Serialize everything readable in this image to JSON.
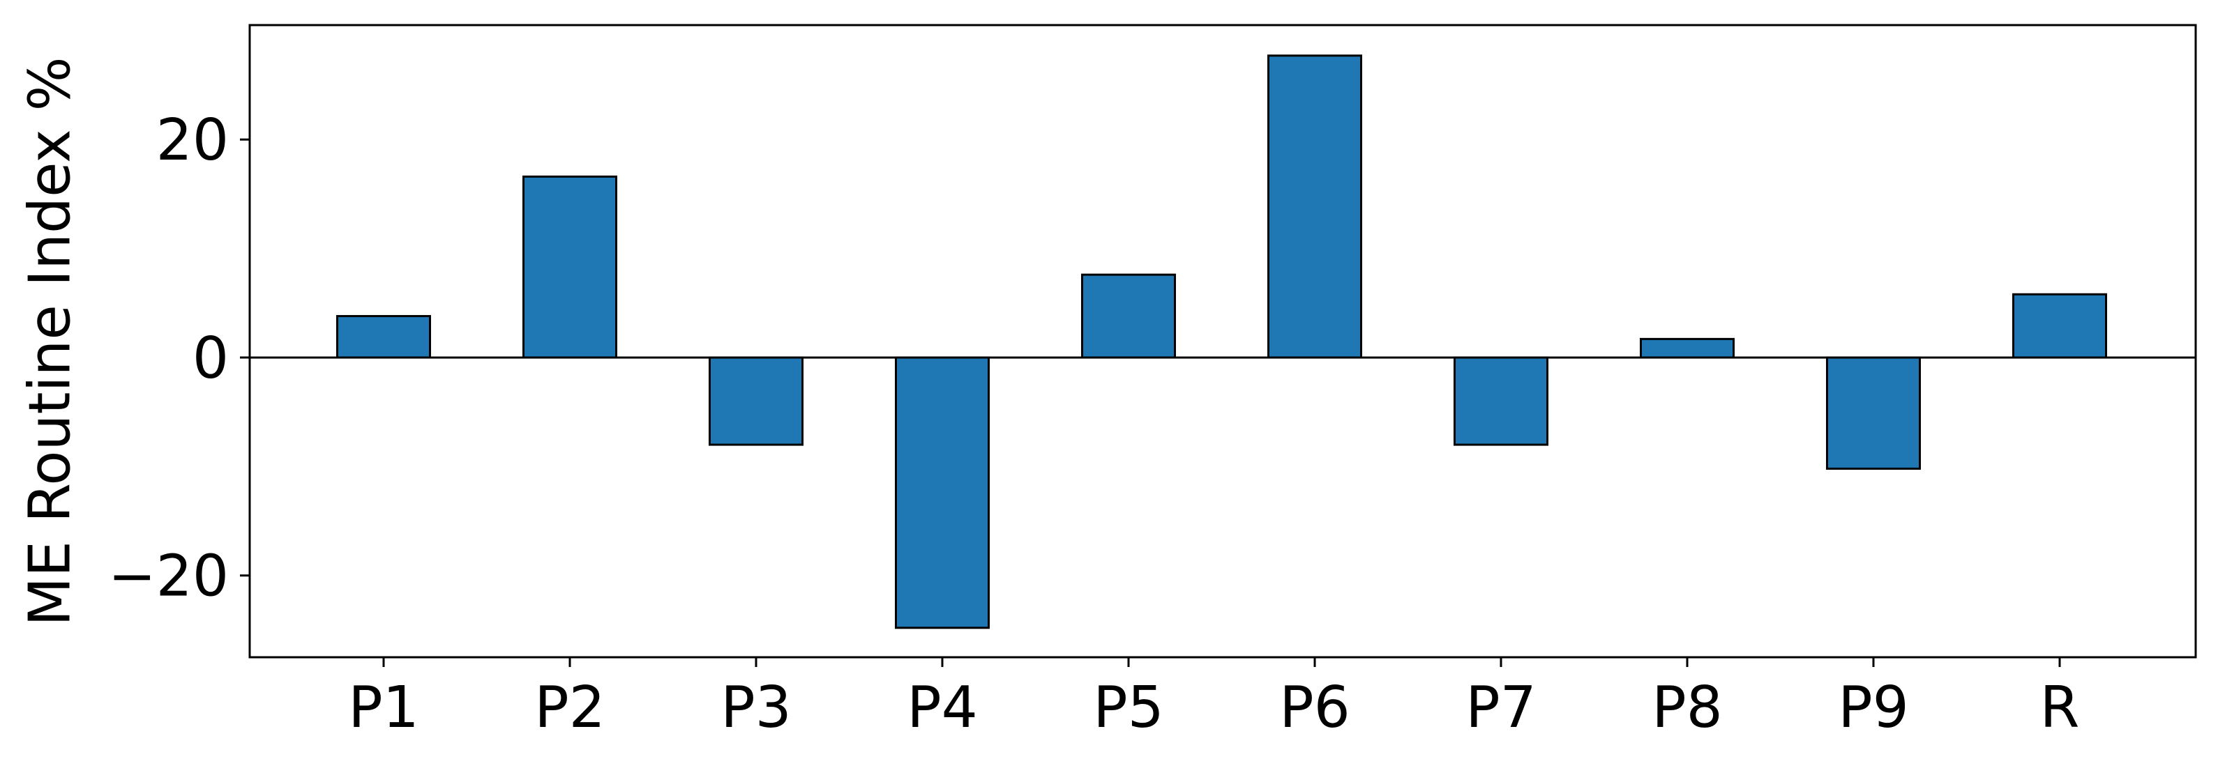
{
  "chart_data": {
    "type": "bar",
    "title": "",
    "xlabel": "",
    "ylabel": "ME Routine Index %",
    "categories": [
      "P1",
      "P2",
      "P3",
      "P4",
      "P5",
      "P6",
      "P7",
      "P8",
      "P9",
      "R"
    ],
    "values": [
      3.8,
      16.6,
      -8.0,
      -24.8,
      7.6,
      27.7,
      -8.0,
      1.7,
      -10.2,
      5.8
    ],
    "ylim": [
      -27.5,
      30.5
    ],
    "yticks": [
      -20,
      0,
      20
    ],
    "ytick_labels": [
      "−20",
      "0",
      "20"
    ],
    "grid": false,
    "legend": "none",
    "colors": {
      "bar_fill": "#1f77b4",
      "bar_edge": "#000000",
      "axis": "#000000",
      "zero_line": "#000000"
    }
  }
}
